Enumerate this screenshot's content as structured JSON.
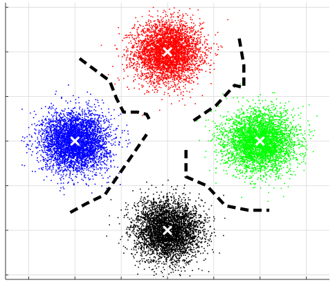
{
  "chart_data": {
    "type": "scatter",
    "title": "",
    "xlabel": "",
    "ylabel": "",
    "xlim": [
      -3.5,
      3.5
    ],
    "ylim": [
      -3.1,
      3.1
    ],
    "grid": true,
    "legend": "none",
    "axis_lines": [
      "bottom",
      "left"
    ],
    "series": [
      {
        "color": "#ff0000",
        "center": [
          0,
          2
        ],
        "spread": [
          0.85,
          0.8
        ],
        "point_count": 9000
      },
      {
        "color": "#0000ff",
        "center": [
          -2,
          0
        ],
        "spread": [
          0.85,
          0.8
        ],
        "point_count": 9000
      },
      {
        "color": "#00ff00",
        "center": [
          2,
          0
        ],
        "spread": [
          0.9,
          0.8
        ],
        "point_count": 9000
      },
      {
        "color": "#000000",
        "center": [
          0,
          -2
        ],
        "spread": [
          0.85,
          0.8
        ],
        "point_count": 9000
      }
    ],
    "centroid_marker": {
      "symbol": "x",
      "color": "#ffffff"
    },
    "decision_boundaries": [
      {
        "style": "dashed",
        "color": "#000000",
        "points": [
          [
            -1.9,
            1.85
          ],
          [
            -1.25,
            1.35
          ],
          [
            -1.1,
            0.95
          ],
          [
            -0.95,
            0.65
          ],
          [
            -0.65,
            0.65
          ],
          [
            -0.45,
            0.6
          ],
          [
            -0.35,
            0.4
          ]
        ]
      },
      {
        "style": "dashed",
        "color": "#000000",
        "points": [
          [
            1.55,
            2.3
          ],
          [
            1.65,
            1.7
          ],
          [
            1.65,
            1.2
          ],
          [
            1.45,
            1.25
          ],
          [
            1.05,
            0.8
          ],
          [
            0.55,
            0.45
          ]
        ]
      },
      {
        "style": "dashed",
        "color": "#000000",
        "points": [
          [
            -2.1,
            -1.6
          ],
          [
            -1.75,
            -1.4
          ],
          [
            -1.35,
            -1.2
          ],
          [
            -0.85,
            -0.45
          ],
          [
            -0.45,
            0.15
          ]
        ]
      },
      {
        "style": "dashed",
        "color": "#000000",
        "points": [
          [
            0.4,
            -0.2
          ],
          [
            0.4,
            -0.8
          ],
          [
            0.85,
            -1.0
          ],
          [
            1.25,
            -1.45
          ],
          [
            1.75,
            -1.55
          ],
          [
            2.2,
            -1.55
          ]
        ]
      }
    ]
  }
}
